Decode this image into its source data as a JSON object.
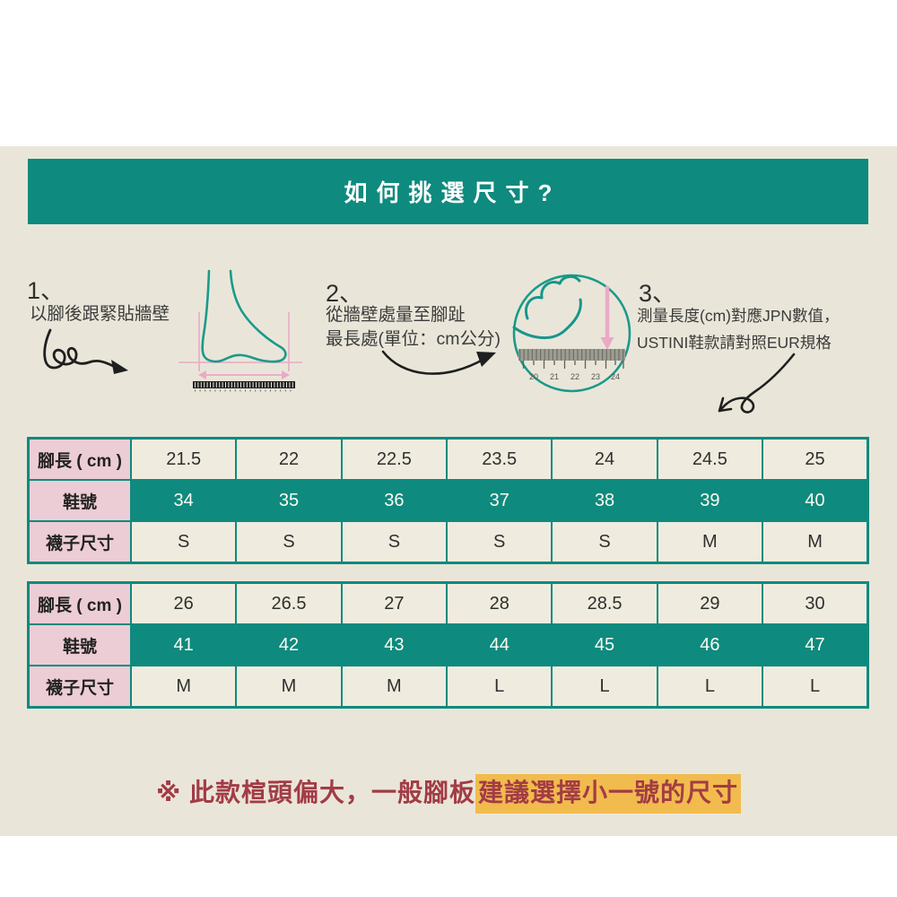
{
  "header": {
    "title": "如何挑選尺寸?"
  },
  "steps": [
    {
      "number": "1、",
      "lines": [
        "以腳後跟緊貼牆壁"
      ]
    },
    {
      "number": "2、",
      "lines": [
        "從牆壁處量至腳趾",
        "最長處(單位：cm公分)"
      ]
    },
    {
      "number": "3、",
      "lines": [
        "測量長度(cm)對應JPN數值，",
        "USTINI鞋款請對照EUR規格"
      ]
    }
  ],
  "illustrations": {
    "circle_ruler_numbers": [
      "20",
      "21",
      "22",
      "23",
      "24"
    ]
  },
  "tables": [
    {
      "rows": [
        {
          "label": "腳長 ( cm )",
          "style": "cream",
          "values": [
            "21.5",
            "22",
            "22.5",
            "23.5",
            "24",
            "24.5",
            "25"
          ]
        },
        {
          "label": "鞋號",
          "style": "teal",
          "values": [
            "34",
            "35",
            "36",
            "37",
            "38",
            "39",
            "40"
          ]
        },
        {
          "label": "襪子尺寸",
          "style": "cream",
          "values": [
            "S",
            "S",
            "S",
            "S",
            "S",
            "M",
            "M"
          ]
        }
      ]
    },
    {
      "rows": [
        {
          "label": "腳長 ( cm )",
          "style": "cream",
          "values": [
            "26",
            "26.5",
            "27",
            "28",
            "28.5",
            "29",
            "30"
          ]
        },
        {
          "label": "鞋號",
          "style": "teal",
          "values": [
            "41",
            "42",
            "43",
            "44",
            "45",
            "46",
            "47"
          ]
        },
        {
          "label": "襪子尺寸",
          "style": "cream",
          "values": [
            "M",
            "M",
            "M",
            "L",
            "L",
            "L",
            "L"
          ]
        }
      ]
    }
  ],
  "note": {
    "prefix": "※ 此款楦頭偏大，一般腳板",
    "highlight": "建議選擇小一號的尺寸"
  },
  "colors": {
    "teal": "#0e8a7e",
    "pink_label": "#eccdd5",
    "cream_cell": "#efecdf",
    "page_beige": "#e9e6d9",
    "note_maroon": "#a23c46",
    "highlight_orange": "#f2bb4d",
    "illustration_teal": "#1a9a8b",
    "illustration_pink": "#eba9c6",
    "ink": "#1f1f1f"
  }
}
